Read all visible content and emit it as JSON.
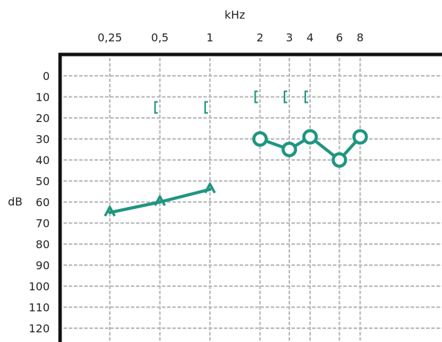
{
  "chart_data": {
    "type": "line",
    "title": "",
    "xlabel": "kHz",
    "ylabel": "dB",
    "x_ticks": [
      "0,25",
      "0,5",
      "1",
      "2",
      "3",
      "4",
      "6",
      "8"
    ],
    "x_scale": "log2",
    "y_ticks": [
      "0",
      "10",
      "20",
      "30",
      "40",
      "50",
      "60",
      "70",
      "80",
      "90",
      "100",
      "110",
      "120"
    ],
    "ylim": [
      0,
      125
    ],
    "y_inverted": true,
    "grid": true,
    "colors": {
      "series": "#1f9680",
      "frame": "#111111",
      "grid": "#b9b9b9"
    },
    "series": [
      {
        "marker": "triangle-cap",
        "x": [
          0.25,
          0.5,
          1
        ],
        "values": [
          65,
          60,
          54
        ]
      },
      {
        "marker": "open-circle",
        "x": [
          2,
          3,
          4,
          6,
          8
        ],
        "values": [
          30,
          35,
          29,
          40,
          29
        ]
      },
      {
        "marker": "bracket",
        "connected": false,
        "x": [
          0.5,
          1,
          2,
          3,
          4
        ],
        "values": [
          15,
          15,
          10,
          10,
          10
        ]
      }
    ]
  }
}
